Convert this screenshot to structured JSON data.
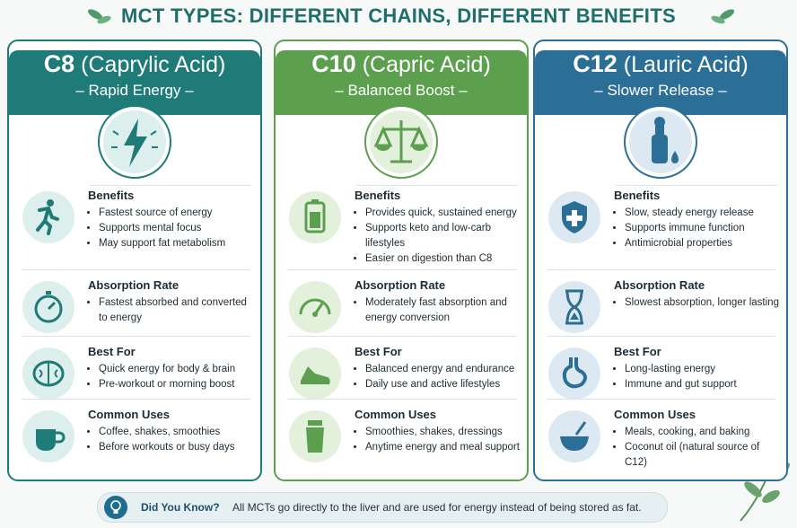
{
  "title": "MCT TYPES: DIFFERENT CHAINS, DIFFERENT BENEFITS",
  "cards": [
    {
      "code": "C8",
      "name": "(Caprylic Acid)",
      "tagline": "– Rapid Energy –",
      "sections": [
        {
          "heading": "Benefits",
          "items": [
            "Fastest source of energy",
            "Supports mental focus",
            "May support fat metabolism"
          ]
        },
        {
          "heading": "Absorption Rate",
          "items": [
            "Fastest absorbed and converted to energy"
          ]
        },
        {
          "heading": "Best For",
          "items": [
            "Quick energy for body & brain",
            "Pre-workout or morning boost"
          ]
        },
        {
          "heading": "Common Uses",
          "items": [
            "Coffee, shakes, smoothies",
            "Before workouts or busy days"
          ]
        }
      ]
    },
    {
      "code": "C10",
      "name": "(Capric Acid)",
      "tagline": "– Balanced Boost –",
      "sections": [
        {
          "heading": "Benefits",
          "items": [
            "Provides quick, sustained energy",
            "Supports keto and low-carb lifestyles",
            "Easier on digestion than C8"
          ]
        },
        {
          "heading": "Absorption Rate",
          "items": [
            "Moderately fast absorption and energy conversion"
          ]
        },
        {
          "heading": "Best For",
          "items": [
            "Balanced energy and endurance",
            "Daily use and active lifestyles"
          ]
        },
        {
          "heading": "Common Uses",
          "items": [
            "Smoothies, shakes, dressings",
            "Anytime energy and meal support"
          ]
        }
      ]
    },
    {
      "code": "C12",
      "name": "(Lauric Acid)",
      "tagline": "– Slower Release –",
      "sections": [
        {
          "heading": "Benefits",
          "items": [
            "Slow, steady energy release",
            "Supports immune function",
            "Antimicrobial properties"
          ]
        },
        {
          "heading": "Absorption Rate",
          "items": [
            "Slowest absorption, longer lasting"
          ]
        },
        {
          "heading": "Best For",
          "items": [
            "Long-lasting energy",
            "Immune and gut support"
          ]
        },
        {
          "heading": "Common Uses",
          "items": [
            "Meals, cooking, and baking",
            "Coconut oil (natural source of C12)"
          ]
        }
      ]
    }
  ],
  "did_you_know": {
    "label": "Did You Know?",
    "text": "All MCTs go directly to the liver and are used for energy instead of being stored as fat."
  }
}
